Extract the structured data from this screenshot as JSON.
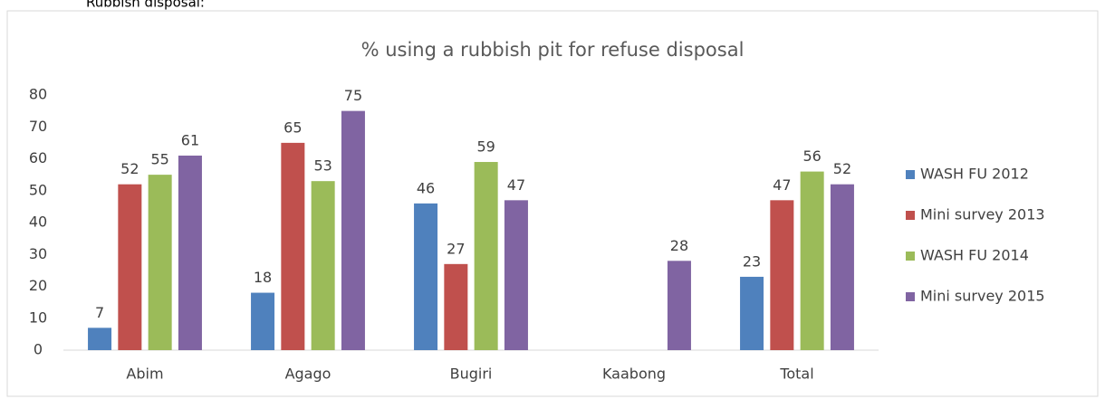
{
  "heading": "Rubbish disposal:",
  "chart_data": {
    "type": "bar",
    "title": "% using a rubbish pit for refuse disposal",
    "categories": [
      "Abim",
      "Agago",
      "Bugiri",
      "Kaabong",
      "Total"
    ],
    "series": [
      {
        "name": "WASH FU 2012",
        "color": "#4f81bd",
        "values": [
          7,
          18,
          46,
          null,
          23
        ]
      },
      {
        "name": "Mini survey 2013",
        "color": "#c0504d",
        "values": [
          52,
          65,
          27,
          null,
          47
        ]
      },
      {
        "name": "WASH FU 2014",
        "color": "#9bbb59",
        "values": [
          55,
          53,
          59,
          null,
          56
        ]
      },
      {
        "name": "Mini survey 2015",
        "color": "#8064a2",
        "values": [
          61,
          75,
          47,
          28,
          52
        ]
      }
    ],
    "ylim": [
      0,
      80
    ],
    "yticks": [
      0,
      10,
      20,
      30,
      40,
      50,
      60,
      70,
      80
    ],
    "grid": false,
    "legend": "right"
  }
}
